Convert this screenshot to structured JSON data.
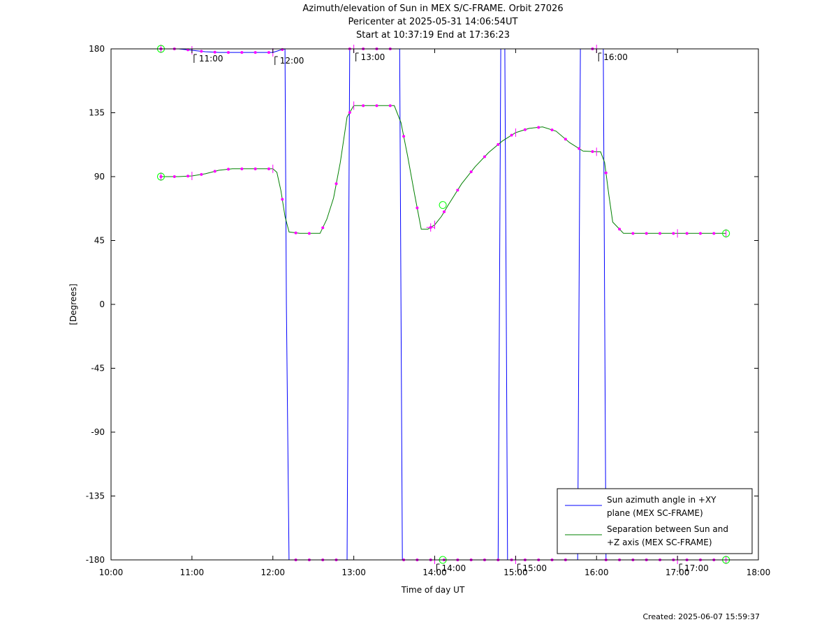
{
  "chart_data": {
    "type": "line",
    "title": [
      "Azimuth/elevation of Sun in MEX S/C-FRAME.  Orbit 27026",
      "Pericenter at 2025-05-31 14:06:54UT",
      "Start at 10:37:19 End at 17:36:23"
    ],
    "xlabel": "Time of day UT",
    "ylabel": "[Degrees]",
    "xlim": [
      "10:00",
      "18:00"
    ],
    "ylim": [
      -180,
      180
    ],
    "xticks": [
      "10:00",
      "11:00",
      "12:00",
      "13:00",
      "14:00",
      "15:00",
      "16:00",
      "17:00",
      "18:00"
    ],
    "yticks": [
      "180",
      "135",
      "90",
      "45",
      "0",
      "-45",
      "-90",
      "-135",
      "-180"
    ],
    "legend_position": "bottom-right",
    "colors": {
      "azimuth": "#0000ff",
      "separation": "#008000",
      "markers": "#ff00ff",
      "endpoints": "#00ff00"
    },
    "series": [
      {
        "name": "Sun azimuth angle in +XY plane (MEX SC-FRAME)",
        "color": "#0000ff",
        "x": [
          "10:37",
          "10:50",
          "11:00",
          "11:10",
          "11:20",
          "11:30",
          "11:40",
          "11:50",
          "12:00",
          "12:05",
          "12:09",
          "12:10",
          "12:12",
          "12:20",
          "12:30",
          "12:40",
          "12:50",
          "12:55",
          "12:56",
          "12:57",
          "13:00",
          "13:10",
          "13:20",
          "13:30",
          "13:34",
          "13:35",
          "13:36",
          "13:40",
          "13:50",
          "14:00",
          "14:10",
          "14:20",
          "14:30",
          "14:40",
          "14:47",
          "14:48",
          "14:49",
          "14:52",
          "14:53",
          "14:54",
          "15:00",
          "15:10",
          "15:20",
          "15:30",
          "15:40",
          "15:46",
          "15:47",
          "15:48",
          "16:00",
          "16:05",
          "16:06",
          "16:07",
          "16:10",
          "16:20",
          "16:30",
          "16:40",
          "16:50",
          "17:00",
          "17:10",
          "17:20",
          "17:30",
          "17:36"
        ],
        "y": [
          180,
          180,
          179,
          178,
          177.5,
          177.5,
          177.5,
          177.5,
          177.5,
          179,
          180,
          0,
          -180,
          -180,
          -180,
          -180,
          -180,
          -180,
          0,
          180,
          180,
          180,
          180,
          180,
          180,
          0,
          -180,
          -180,
          -180,
          -180,
          -180,
          -180,
          -180,
          -180,
          -180,
          0,
          180,
          180,
          0,
          -180,
          -180,
          -180,
          -180,
          -180,
          -180,
          -180,
          0,
          180,
          180,
          180,
          0,
          -180,
          -180,
          -180,
          -180,
          -180,
          -180,
          -180,
          -180,
          -180,
          -180,
          -180
        ]
      },
      {
        "name": "Separation between Sun and +Z axis (MEX SC-FRAME)",
        "color": "#008000",
        "x": [
          "10:37",
          "10:50",
          "11:00",
          "11:10",
          "11:20",
          "11:30",
          "11:40",
          "11:50",
          "12:00",
          "12:03",
          "12:06",
          "12:09",
          "12:12",
          "12:20",
          "12:30",
          "12:35",
          "12:40",
          "12:45",
          "12:50",
          "12:55",
          "13:00",
          "13:10",
          "13:20",
          "13:30",
          "13:35",
          "13:40",
          "13:45",
          "13:50",
          "13:55",
          "14:00",
          "14:05",
          "14:10",
          "14:20",
          "14:30",
          "14:40",
          "14:50",
          "15:00",
          "15:10",
          "15:20",
          "15:30",
          "15:40",
          "15:50",
          "16:00",
          "16:03",
          "16:06",
          "16:09",
          "16:12",
          "16:20",
          "16:30",
          "16:40",
          "16:50",
          "17:00",
          "17:10",
          "17:20",
          "17:30",
          "17:36"
        ],
        "y": [
          90,
          90,
          90.5,
          92,
          94.5,
          95.5,
          95.5,
          95.5,
          95.5,
          93,
          80,
          62,
          51,
          50,
          50,
          50,
          60,
          75,
          100,
          132,
          140,
          140,
          140,
          140,
          128,
          104,
          78,
          53,
          53,
          56,
          62,
          70,
          85,
          97,
          107,
          115,
          121,
          124,
          125,
          122,
          114,
          108,
          107.5,
          107.5,
          100,
          78,
          58,
          50,
          50,
          50,
          50,
          50,
          50,
          50,
          50,
          50
        ]
      }
    ],
    "markers": {
      "tick_marks": {
        "x": [
          "10:37",
          "11:00",
          "12:00",
          "13:00",
          "14:00",
          "15:00",
          "16:00",
          "17:00",
          "17:36"
        ],
        "azimuth_y": [
          180,
          179,
          177.5,
          180,
          -180,
          -180,
          180,
          -180,
          -180
        ],
        "separation_y": [
          90,
          90.5,
          95.5,
          140,
          56,
          121,
          107.5,
          50,
          50
        ]
      },
      "periapsis": {
        "x": "14:06",
        "separation_y": 70,
        "azimuth_y": -180
      },
      "hour_labels": [
        "11:00",
        "12:00",
        "13:00",
        "14:00",
        "15:00",
        "16:00",
        "17:00"
      ]
    },
    "created": "Created: 2025-06-07 15:59:37"
  }
}
